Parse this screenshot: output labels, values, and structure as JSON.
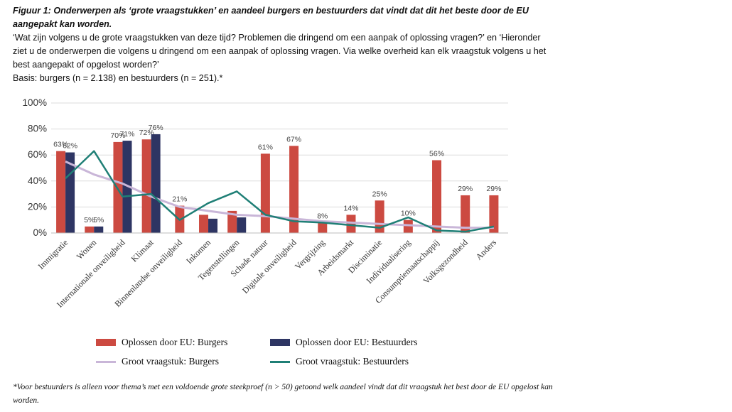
{
  "header": {
    "title": "Figuur 1: Onderwerpen als ‘grote vraagstukken’ en aandeel burgers en bestuurders dat vindt dat dit het beste door de EU aangepakt kan worden.",
    "question": "‘Wat zijn volgens u de grote vraagstukken van deze tijd? Problemen die dringend om een aanpak of oplossing vragen?’ en ‘Hieronder ziet u de onderwerpen die volgens u dringend om een aanpak of oplossing vragen. Via welke overheid kan elk vraagstuk volgens u het best aangepakt of opgelost worden?’",
    "basis": "Basis: burgers (n = 2.138) en bestuurders (n = 251).*"
  },
  "chart_data": {
    "type": "bar",
    "categories": [
      "Immigratie",
      "Wonen",
      "Internationale onveiligheid",
      "Klimaat",
      "Binnenlandse onveiligheid",
      "Inkomen",
      "Tegenstellingen",
      "Schade natuur",
      "Digitale onveiligheid",
      "Vergrijzing",
      "Arbeidsmarkt",
      "Disciminatie",
      "Individualisering",
      "Consumptiemaatschappij",
      "Volksgezondheid",
      "Anders"
    ],
    "series": [
      {
        "name": "Oplossen door EU:  Burgers",
        "kind": "bar",
        "color": "#cc4a41",
        "values": [
          63,
          5,
          70,
          72,
          21,
          14,
          17,
          61,
          67,
          8,
          14,
          25,
          10,
          56,
          29,
          29
        ],
        "labels": [
          "63%",
          "5%",
          "70%",
          "72%",
          "21%",
          "",
          "",
          "61%",
          "67%",
          "8%",
          "14%",
          "25%",
          "10%",
          "56%",
          "29%",
          "29%"
        ]
      },
      {
        "name": "Oplossen door EU:  Bestuurders",
        "kind": "bar",
        "color": "#2e3563",
        "values": [
          62,
          5,
          71,
          76,
          null,
          11,
          12,
          null,
          null,
          null,
          null,
          null,
          null,
          null,
          null,
          null
        ],
        "labels": [
          "62%",
          "5%",
          "71%",
          "76%",
          "",
          "",
          "",
          "",
          "",
          "",
          "",
          "",
          "",
          "",
          "",
          ""
        ]
      },
      {
        "name": "Groot vraagstuk:  Burgers",
        "kind": "line",
        "color": "#c9b6d8",
        "values": [
          55,
          45,
          38,
          28,
          20,
          17,
          14,
          13,
          11,
          9,
          8,
          7,
          6,
          5,
          4,
          4
        ]
      },
      {
        "name": "Groot vraagstuk:  Bestuurders",
        "kind": "line",
        "color": "#1f7f76",
        "values": [
          42,
          63,
          28,
          30,
          10,
          23,
          32,
          14,
          9,
          8,
          6,
          4,
          12,
          2,
          1,
          5
        ]
      }
    ],
    "yticks": [
      "0%",
      "20%",
      "40%",
      "60%",
      "80%",
      "100%"
    ],
    "ylim": [
      0,
      100
    ],
    "grid": true,
    "legend": "bottom"
  },
  "footnote": "*Voor bestuurders is alleen voor thema’s met een voldoende grote steekproef (n > 50) getoond welk aandeel vindt dat dit vraagstuk het best door de EU opgelost kan worden."
}
